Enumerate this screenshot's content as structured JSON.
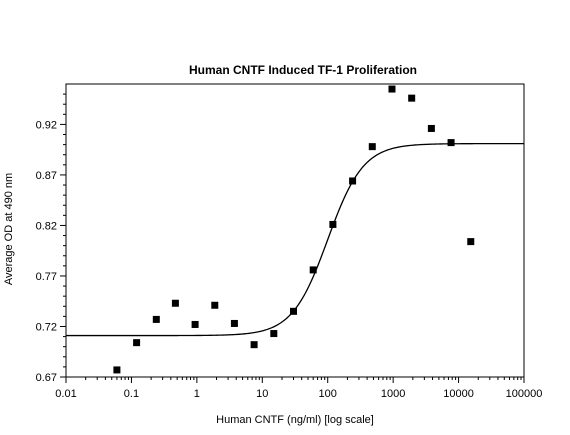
{
  "chart_data": {
    "type": "scatter",
    "title": "Human CNTF Induced TF-1 Proliferation",
    "xlabel": "Human CNTF (ng/ml) [log scale]",
    "ylabel": "Average OD at 490 nm",
    "x_scale": "log",
    "xlim": [
      0.01,
      100000
    ],
    "ylim": [
      0.67,
      0.96
    ],
    "x_ticks": [
      {
        "value": 0.01,
        "label": "0.01"
      },
      {
        "value": 0.1,
        "label": "0.1"
      },
      {
        "value": 1,
        "label": "1"
      },
      {
        "value": 10,
        "label": "10"
      },
      {
        "value": 100,
        "label": "100"
      },
      {
        "value": 1000,
        "label": "1000"
      },
      {
        "value": 10000,
        "label": "10000"
      },
      {
        "value": 100000,
        "label": "100000"
      }
    ],
    "y_ticks": [
      {
        "value": 0.67,
        "label": "0.67"
      },
      {
        "value": 0.72,
        "label": "0.72"
      },
      {
        "value": 0.77,
        "label": "0.77"
      },
      {
        "value": 0.82,
        "label": "0.82"
      },
      {
        "value": 0.87,
        "label": "0.87"
      },
      {
        "value": 0.92,
        "label": "0.92"
      }
    ],
    "grid": false,
    "series": [
      {
        "type": "scatter",
        "marker": "square",
        "color": "#000000",
        "points": [
          {
            "x": 0.06,
            "y": 0.677
          },
          {
            "x": 0.12,
            "y": 0.704
          },
          {
            "x": 0.24,
            "y": 0.727
          },
          {
            "x": 0.47,
            "y": 0.743
          },
          {
            "x": 0.94,
            "y": 0.722
          },
          {
            "x": 1.88,
            "y": 0.741
          },
          {
            "x": 3.75,
            "y": 0.723
          },
          {
            "x": 7.5,
            "y": 0.702
          },
          {
            "x": 15,
            "y": 0.713
          },
          {
            "x": 30,
            "y": 0.735
          },
          {
            "x": 60,
            "y": 0.776
          },
          {
            "x": 120,
            "y": 0.821
          },
          {
            "x": 240,
            "y": 0.864
          },
          {
            "x": 480,
            "y": 0.898
          },
          {
            "x": 960,
            "y": 0.955
          },
          {
            "x": 1920,
            "y": 0.946
          },
          {
            "x": 3840,
            "y": 0.916
          },
          {
            "x": 7680,
            "y": 0.902
          },
          {
            "x": 15360,
            "y": 0.804
          }
        ]
      },
      {
        "type": "line",
        "curve": "four-parameter logistic fit",
        "color": "#000000",
        "params": {
          "bottom": 0.711,
          "top": 0.901,
          "ec50": 100,
          "hill": 1.6
        }
      }
    ]
  }
}
